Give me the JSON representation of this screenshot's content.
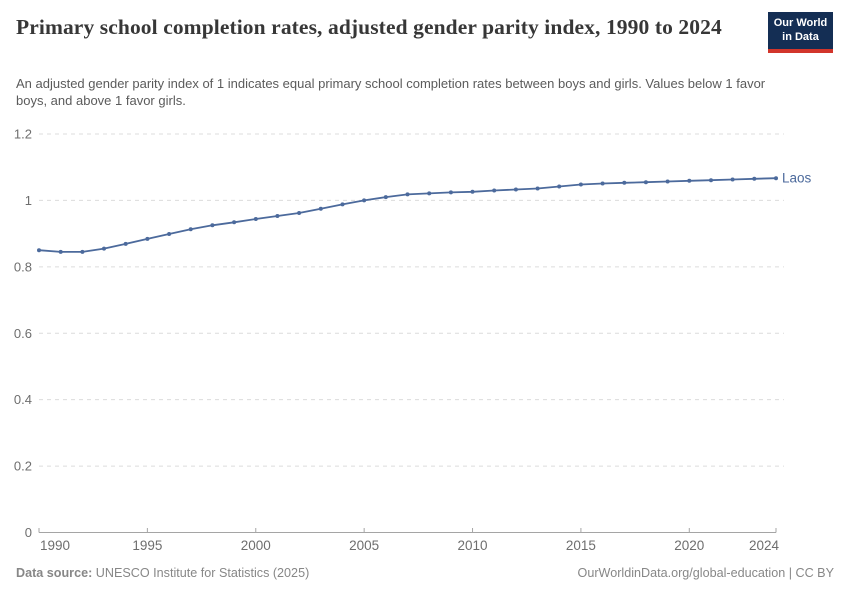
{
  "header": {
    "title": "Primary school completion rates, adjusted gender parity index, 1990 to 2024",
    "subtitle": "An adjusted gender parity index of 1 indicates equal primary school completion rates between boys and girls. Values below 1 favor boys, and above 1 favor girls.",
    "logo": {
      "line1": "Our World",
      "line2": "in Data"
    }
  },
  "footer": {
    "source_label": "Data source:",
    "source_value": " UNESCO Institute for Statistics (2025)",
    "attribution": "OurWorldinData.org/global-education | CC BY"
  },
  "colors": {
    "line": "#4c6a9c",
    "grid": "#dcdcdc",
    "axis": "#a5a5a5",
    "tick_text": "#6e6e6e",
    "logo_bg": "#142e54",
    "logo_red": "#d2352b"
  },
  "chart_data": {
    "type": "line",
    "title": "Primary school completion rates, adjusted gender parity index, 1990 to 2024",
    "xlabel": "",
    "ylabel": "",
    "xlim": [
      1990,
      2024
    ],
    "ylim": [
      0,
      1.2
    ],
    "x_ticks": [
      1990,
      1995,
      2000,
      2005,
      2010,
      2015,
      2020,
      2024
    ],
    "y_ticks": [
      0,
      0.2,
      0.4,
      0.6,
      0.8,
      1,
      1.2
    ],
    "grid": true,
    "legend": "end-of-line-label",
    "series": [
      {
        "name": "Laos",
        "color": "#4c6a9c",
        "x": [
          1990,
          1991,
          1992,
          1993,
          1994,
          1995,
          1996,
          1997,
          1998,
          1999,
          2000,
          2001,
          2002,
          2003,
          2004,
          2005,
          2006,
          2007,
          2008,
          2009,
          2010,
          2011,
          2012,
          2013,
          2014,
          2015,
          2016,
          2017,
          2018,
          2019,
          2020,
          2021,
          2022,
          2023,
          2024
        ],
        "values": [
          0.85,
          0.845,
          0.845,
          0.855,
          0.869,
          0.884,
          0.899,
          0.913,
          0.925,
          0.934,
          0.944,
          0.953,
          0.962,
          0.975,
          0.988,
          1.0,
          1.01,
          1.018,
          1.021,
          1.024,
          1.026,
          1.03,
          1.033,
          1.036,
          1.042,
          1.048,
          1.051,
          1.053,
          1.055,
          1.057,
          1.059,
          1.061,
          1.063,
          1.065,
          1.067
        ]
      }
    ]
  }
}
